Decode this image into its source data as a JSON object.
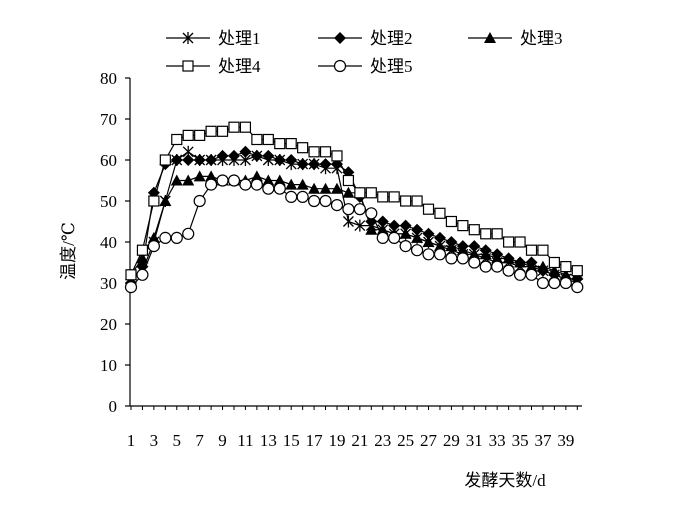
{
  "chart_data": {
    "type": "line",
    "title": "",
    "xlabel": "发酵天数/d",
    "ylabel": "温度/℃",
    "ylim": [
      0,
      80
    ],
    "y_ticks": [
      0,
      10,
      20,
      30,
      40,
      50,
      60,
      70,
      80
    ],
    "x_tick_labels": [
      "1",
      "3",
      "5",
      "7",
      "9",
      "11",
      "13",
      "15",
      "17",
      "19",
      "21",
      "23",
      "25",
      "27",
      "29",
      "31",
      "33",
      "35",
      "37",
      "39"
    ],
    "x": [
      1,
      2,
      3,
      4,
      5,
      6,
      7,
      8,
      9,
      10,
      11,
      12,
      13,
      14,
      15,
      16,
      17,
      18,
      19,
      20,
      21,
      22,
      23,
      24,
      25,
      26,
      27,
      28,
      29,
      30,
      31,
      32,
      33,
      34,
      35,
      36,
      37,
      38,
      39,
      40
    ],
    "grid": false,
    "legend_position": "top",
    "series": [
      {
        "name": "处理1",
        "marker": "star",
        "color": "#000000",
        "values": [
          31,
          33,
          40,
          50,
          60,
          62,
          60,
          60,
          60,
          60,
          60,
          61,
          60,
          60,
          59,
          59,
          59,
          58,
          58,
          45,
          44,
          44,
          43,
          42,
          42,
          41,
          40,
          39,
          38,
          37,
          37,
          36,
          35,
          35,
          34,
          34,
          33,
          32,
          31,
          30
        ]
      },
      {
        "name": "处理2",
        "marker": "diamond",
        "color": "#000000",
        "values": [
          30,
          34,
          52,
          59,
          60,
          60,
          60,
          60,
          61,
          61,
          62,
          61,
          61,
          60,
          60,
          59,
          59,
          59,
          59,
          57,
          51,
          45,
          45,
          44,
          44,
          43,
          42,
          41,
          40,
          39,
          39,
          38,
          37,
          36,
          35,
          35,
          33,
          32,
          31,
          31
        ]
      },
      {
        "name": "处理3",
        "marker": "triangle",
        "color": "#000000",
        "values": [
          32,
          36,
          41,
          50,
          55,
          55,
          56,
          56,
          55,
          55,
          55,
          56,
          55,
          55,
          54,
          54,
          53,
          53,
          53,
          52,
          52,
          43,
          43,
          42,
          42,
          41,
          40,
          39,
          39,
          38,
          37,
          37,
          36,
          36,
          35,
          34,
          34,
          33,
          32,
          32
        ]
      },
      {
        "name": "处理4",
        "marker": "square",
        "color": "#000000",
        "values": [
          32,
          38,
          50,
          60,
          65,
          66,
          66,
          67,
          67,
          68,
          68,
          65,
          65,
          64,
          64,
          63,
          62,
          62,
          61,
          55,
          52,
          52,
          51,
          51,
          50,
          50,
          48,
          47,
          45,
          44,
          43,
          42,
          42,
          40,
          40,
          38,
          38,
          35,
          34,
          33
        ]
      },
      {
        "name": "处理5",
        "marker": "circle",
        "color": "#000000",
        "values": [
          29,
          32,
          39,
          41,
          41,
          42,
          50,
          54,
          55,
          55,
          54,
          54,
          53,
          53,
          51,
          51,
          50,
          50,
          49,
          48,
          48,
          47,
          41,
          41,
          39,
          38,
          37,
          37,
          36,
          36,
          35,
          34,
          34,
          33,
          32,
          32,
          30,
          30,
          30,
          29
        ]
      }
    ]
  }
}
